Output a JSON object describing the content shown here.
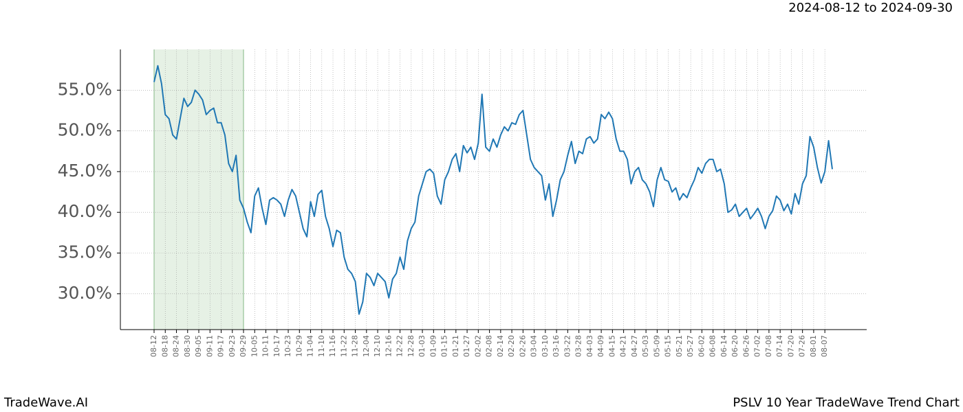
{
  "chart_data": {
    "type": "line",
    "title": "2024-08-12 to 2024-09-30",
    "footer_left": "TradeWave.AI",
    "footer_right": "PSLV 10 Year TradeWave Trend Chart",
    "categories": [
      "08-12",
      null,
      null,
      "08-18",
      null,
      null,
      "08-24",
      null,
      null,
      "08-30",
      null,
      null,
      "09-05",
      null,
      null,
      "09-11",
      null,
      null,
      "09-17",
      null,
      null,
      "09-23",
      null,
      null,
      "09-29",
      null,
      null,
      "10-05",
      null,
      null,
      "10-11",
      null,
      null,
      "10-17",
      null,
      null,
      "10-23",
      null,
      null,
      "10-29",
      null,
      null,
      "11-04",
      null,
      null,
      "11-10",
      null,
      null,
      "11-16",
      null,
      null,
      "11-22",
      null,
      null,
      "11-28",
      null,
      null,
      "12-04",
      null,
      null,
      "12-10",
      null,
      null,
      "12-16",
      null,
      null,
      "12-22",
      null,
      null,
      "12-28",
      null,
      null,
      "01-03",
      null,
      null,
      "01-09",
      null,
      null,
      "01-15",
      null,
      null,
      "01-21",
      null,
      null,
      "01-27",
      null,
      null,
      "02-02",
      null,
      null,
      "02-08",
      null,
      null,
      "02-14",
      null,
      null,
      "02-20",
      null,
      null,
      "02-26",
      null,
      null,
      "03-04",
      null,
      null,
      "03-10",
      null,
      null,
      "03-16",
      null,
      null,
      "03-22",
      null,
      null,
      "03-28",
      null,
      null,
      "04-03",
      null,
      null,
      "04-09",
      null,
      null,
      "04-15",
      null,
      null,
      "04-21",
      null,
      null,
      "04-27",
      null,
      null,
      "05-03",
      null,
      null,
      "05-09",
      null,
      null,
      "05-15",
      null,
      null,
      "05-21",
      null,
      null,
      "05-27",
      null,
      null,
      "06-02",
      null,
      null,
      "06-08",
      null,
      null,
      "06-14",
      null,
      null,
      "06-20",
      null,
      null,
      "06-26",
      null,
      null,
      "07-02",
      null,
      null,
      "07-08",
      null,
      null,
      "07-14",
      null,
      null,
      "07-20",
      null,
      null,
      "07-26",
      null,
      null,
      "08-01",
      null,
      null,
      "08-07",
      null,
      null
    ],
    "values": [
      56.0,
      58.0,
      55.8,
      52.0,
      51.5,
      49.5,
      49.0,
      51.5,
      54.0,
      53.0,
      53.5,
      55.0,
      54.5,
      53.8,
      52.0,
      52.5,
      52.8,
      51.0,
      51.0,
      49.5,
      46.0,
      45.0,
      47.0,
      41.5,
      40.5,
      38.8,
      37.5,
      42.0,
      43.0,
      40.5,
      38.5,
      41.5,
      41.8,
      41.5,
      41.0,
      39.5,
      41.5,
      42.8,
      42.0,
      40.0,
      38.0,
      37.0,
      41.3,
      39.5,
      42.2,
      42.7,
      39.5,
      38.0,
      35.8,
      37.8,
      37.5,
      34.5,
      33.0,
      32.5,
      31.5,
      27.5,
      29.0,
      32.5,
      32.0,
      31.0,
      32.5,
      32.0,
      31.5,
      29.5,
      31.8,
      32.5,
      34.5,
      33.0,
      36.5,
      38.0,
      38.8,
      42.0,
      43.5,
      45.0,
      45.3,
      44.8,
      42.0,
      41.0,
      44.0,
      45.0,
      46.5,
      47.2,
      45.0,
      48.2,
      47.3,
      48.0,
      46.5,
      48.5,
      54.5,
      48.0,
      47.5,
      49.0,
      48.0,
      49.5,
      50.5,
      50.0,
      51.0,
      50.8,
      52.0,
      52.5,
      49.5,
      46.5,
      45.5,
      45.0,
      44.5,
      41.5,
      43.5,
      39.5,
      41.5,
      44.0,
      45.0,
      47.0,
      48.7,
      46.0,
      47.5,
      47.2,
      49.0,
      49.3,
      48.5,
      49.0,
      52.0,
      51.5,
      52.3,
      51.5,
      49.0,
      47.5,
      47.5,
      46.5,
      43.5,
      45.0,
      45.5,
      44.0,
      43.5,
      42.5,
      40.7,
      44.0,
      45.5,
      44.0,
      43.8,
      42.5,
      43.0,
      41.5,
      42.3,
      41.8,
      43.0,
      44.0,
      45.5,
      44.8,
      46.0,
      46.5,
      46.5,
      45.0,
      45.3,
      43.5,
      40.0,
      40.3,
      41.0,
      39.5,
      40.0,
      40.5,
      39.2,
      39.8,
      40.5,
      39.5,
      38.0,
      39.5,
      40.2,
      42.0,
      41.5,
      40.2,
      41.0,
      39.8,
      42.3,
      41.0,
      43.5,
      44.5,
      49.3,
      48.0,
      45.5,
      43.6,
      45.0,
      48.8,
      45.3
    ],
    "color": "#1f77b4",
    "shade": {
      "from": "08-12",
      "to": "09-29",
      "color": "#d5e8d4",
      "edge_color": "#7fbf7f"
    },
    "ylim": [
      25.6,
      60
    ],
    "yticks": [
      {
        "value": 30,
        "label": "30.0%"
      },
      {
        "value": 35,
        "label": "35.0%"
      },
      {
        "value": 40,
        "label": "40.0%"
      },
      {
        "value": 45,
        "label": "45.0%"
      },
      {
        "value": 50,
        "label": "50.0%"
      },
      {
        "value": 55,
        "label": "55.0%"
      }
    ],
    "grid": true
  }
}
